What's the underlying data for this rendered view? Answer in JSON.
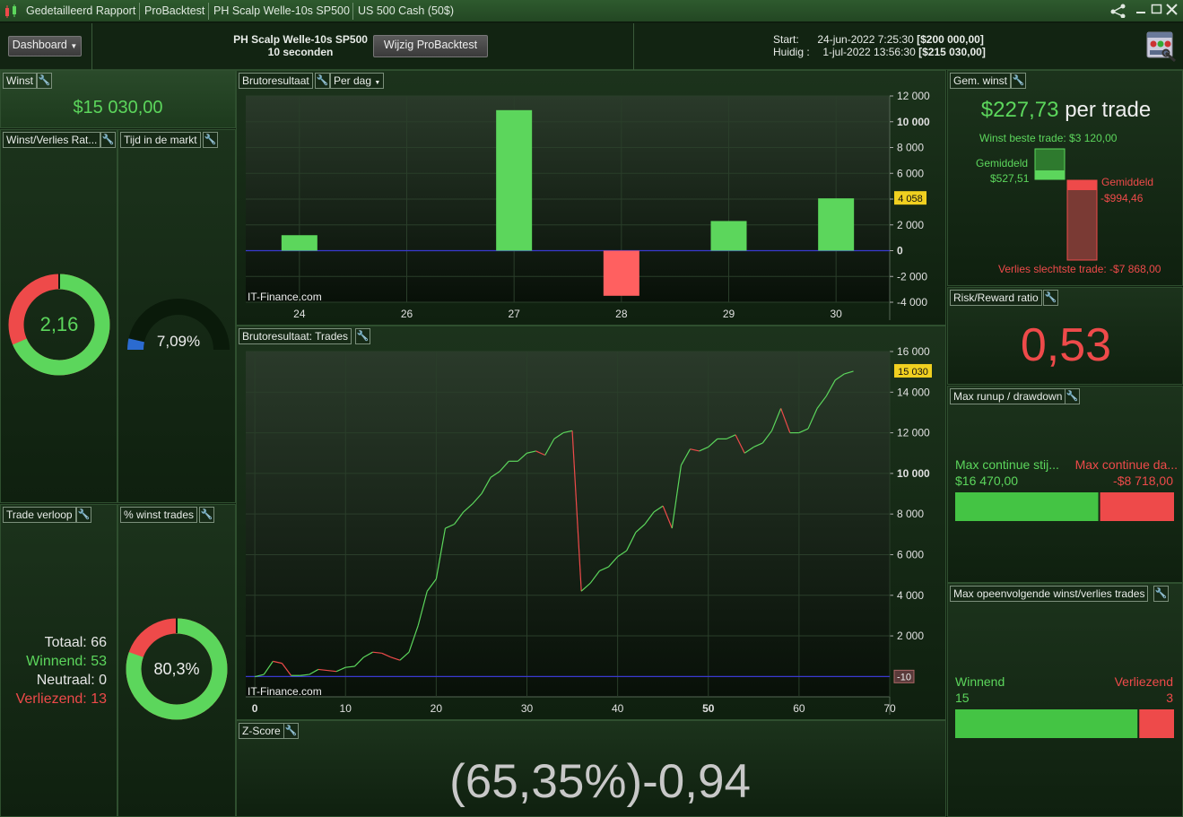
{
  "titlebar": {
    "tabs": [
      "Gedetailleerd Rapport",
      "ProBacktest",
      "PH Scalp Welle-10s SP500",
      "US 500 Cash (50$)"
    ],
    "icons": [
      "candlestick-app-icon",
      "share-icon",
      "minimize-icon",
      "maximize-icon",
      "close-icon"
    ]
  },
  "header": {
    "dashboard_label": "Dashboard",
    "strategy_name": "PH Scalp Welle-10s SP500",
    "timeframe": "10 seconden",
    "modify_button": "Wijzig ProBacktest",
    "start_label": "Start:",
    "start_date": "24-jun-2022 7:25:30",
    "start_capital": "[$200 000,00]",
    "current_label": "Huidig :",
    "current_date": "1-jul-2022 13:56:30",
    "current_capital": "[$215 030,00]"
  },
  "winst": {
    "title": "Winst",
    "value": "$15 030,00"
  },
  "win_loss_ratio": {
    "title": "Winst/Verlies Rat...",
    "value": "2,16",
    "win_fraction": 0.684
  },
  "time_in_market": {
    "title": "Tijd in de markt",
    "value": "7,09%",
    "fraction": 0.0709
  },
  "trade_flow": {
    "title": "Trade verloop",
    "rows": [
      {
        "label": "Totaal:",
        "value": "66",
        "tone": "white"
      },
      {
        "label": "Winnend:",
        "value": "53",
        "tone": "green"
      },
      {
        "label": "Neutraal:",
        "value": "0",
        "tone": "white"
      },
      {
        "label": "Verliezend:",
        "value": "13",
        "tone": "red"
      }
    ]
  },
  "pct_win": {
    "title": "% winst trades",
    "value": "80,3%",
    "fraction": 0.803
  },
  "gross_daily": {
    "title": "Brutoresultaat",
    "period_dropdown": "Per dag",
    "watermark": "IT-Finance.com",
    "last_value_label": "4 058"
  },
  "gross_trades": {
    "title": "Brutoresultaat: Trades",
    "watermark": "IT-Finance.com",
    "last_value_label": "15 030",
    "zero_label": "-10"
  },
  "zscore": {
    "title": "Z-Score",
    "value": "(65,35%)-0,94"
  },
  "avg_win": {
    "title": "Gem. winst",
    "value": "$227,73",
    "suffix": "per trade",
    "best_trade": "Winst beste trade: $3 120,00",
    "avg_win_label": "Gemiddeld",
    "avg_win_value": "$527,51",
    "avg_loss_label": "Gemiddeld",
    "avg_loss_value": "-$994,46",
    "worst_trade": "Verlies slechtste trade: -$7 868,00"
  },
  "risk_reward": {
    "title": "Risk/Reward ratio",
    "value": "0,53"
  },
  "runup": {
    "title": "Max runup / drawdown",
    "left_label": "Max continue stij...",
    "left_value": "$16 470,00",
    "right_label": "Max continue da...",
    "right_value": "-$8 718,00",
    "left_fraction": 0.654
  },
  "consecutive": {
    "title": "Max opeenvolgende winst/verlies trades",
    "win_label": "Winnend",
    "win_value": "15",
    "loss_label": "Verliezend",
    "loss_value": "3",
    "win_fraction": 0.833
  },
  "colors": {
    "win": "#5cd65c",
    "loss": "#ee4a4a",
    "bg": "#102010",
    "zero_line": "#3a3ad0",
    "marker": "#f0d020"
  },
  "chart_data": [
    {
      "type": "bar",
      "title": "Brutoresultaat",
      "categories": [
        "24",
        "26",
        "27",
        "28",
        "29",
        "30"
      ],
      "values": [
        1200,
        0,
        10900,
        -3500,
        2300,
        4058
      ],
      "ylim": [
        -4000,
        12000
      ],
      "yticks": [
        "-4 000",
        "-2 000",
        "0",
        "2 000",
        "4 000",
        "6 000",
        "8 000",
        "10 000",
        "12 000"
      ],
      "grid": true
    },
    {
      "type": "line",
      "title": "Brutoresultaat: Trades",
      "x": [
        0,
        1,
        2,
        3,
        4,
        5,
        6,
        7,
        8,
        9,
        10,
        11,
        12,
        13,
        14,
        15,
        16,
        17,
        18,
        19,
        20,
        21,
        22,
        23,
        24,
        25,
        26,
        27,
        28,
        29,
        30,
        31,
        32,
        33,
        34,
        35,
        36,
        37,
        38,
        39,
        40,
        41,
        42,
        43,
        44,
        45,
        46,
        47,
        48,
        49,
        50,
        51,
        52,
        53,
        54,
        55,
        56,
        57,
        58,
        59,
        60,
        61,
        62,
        63,
        64,
        65,
        66
      ],
      "y": [
        -10,
        100,
        750,
        650,
        50,
        50,
        100,
        350,
        300,
        250,
        450,
        500,
        950,
        1200,
        1150,
        950,
        800,
        1200,
        2500,
        4200,
        4800,
        7300,
        7500,
        8100,
        8500,
        9000,
        9800,
        10100,
        10600,
        10600,
        11000,
        11100,
        10900,
        11700,
        12000,
        12100,
        4200,
        4600,
        5200,
        5400,
        5900,
        6200,
        7100,
        7500,
        8100,
        8400,
        7300,
        10400,
        11200,
        11100,
        11300,
        11700,
        11700,
        11900,
        11000,
        11300,
        11500,
        12100,
        13200,
        12000,
        12000,
        12200,
        13200,
        13800,
        14600,
        14900,
        15030
      ],
      "xlim": [
        -1,
        70
      ],
      "ylim": [
        -1000,
        16000
      ],
      "xticks": [
        "0",
        "10",
        "20",
        "30",
        "40",
        "50",
        "60",
        "70"
      ],
      "yticks": [
        "2 000",
        "4 000",
        "6 000",
        "8 000",
        "10 000",
        "12 000",
        "14 000",
        "16 000"
      ],
      "grid": true
    }
  ]
}
